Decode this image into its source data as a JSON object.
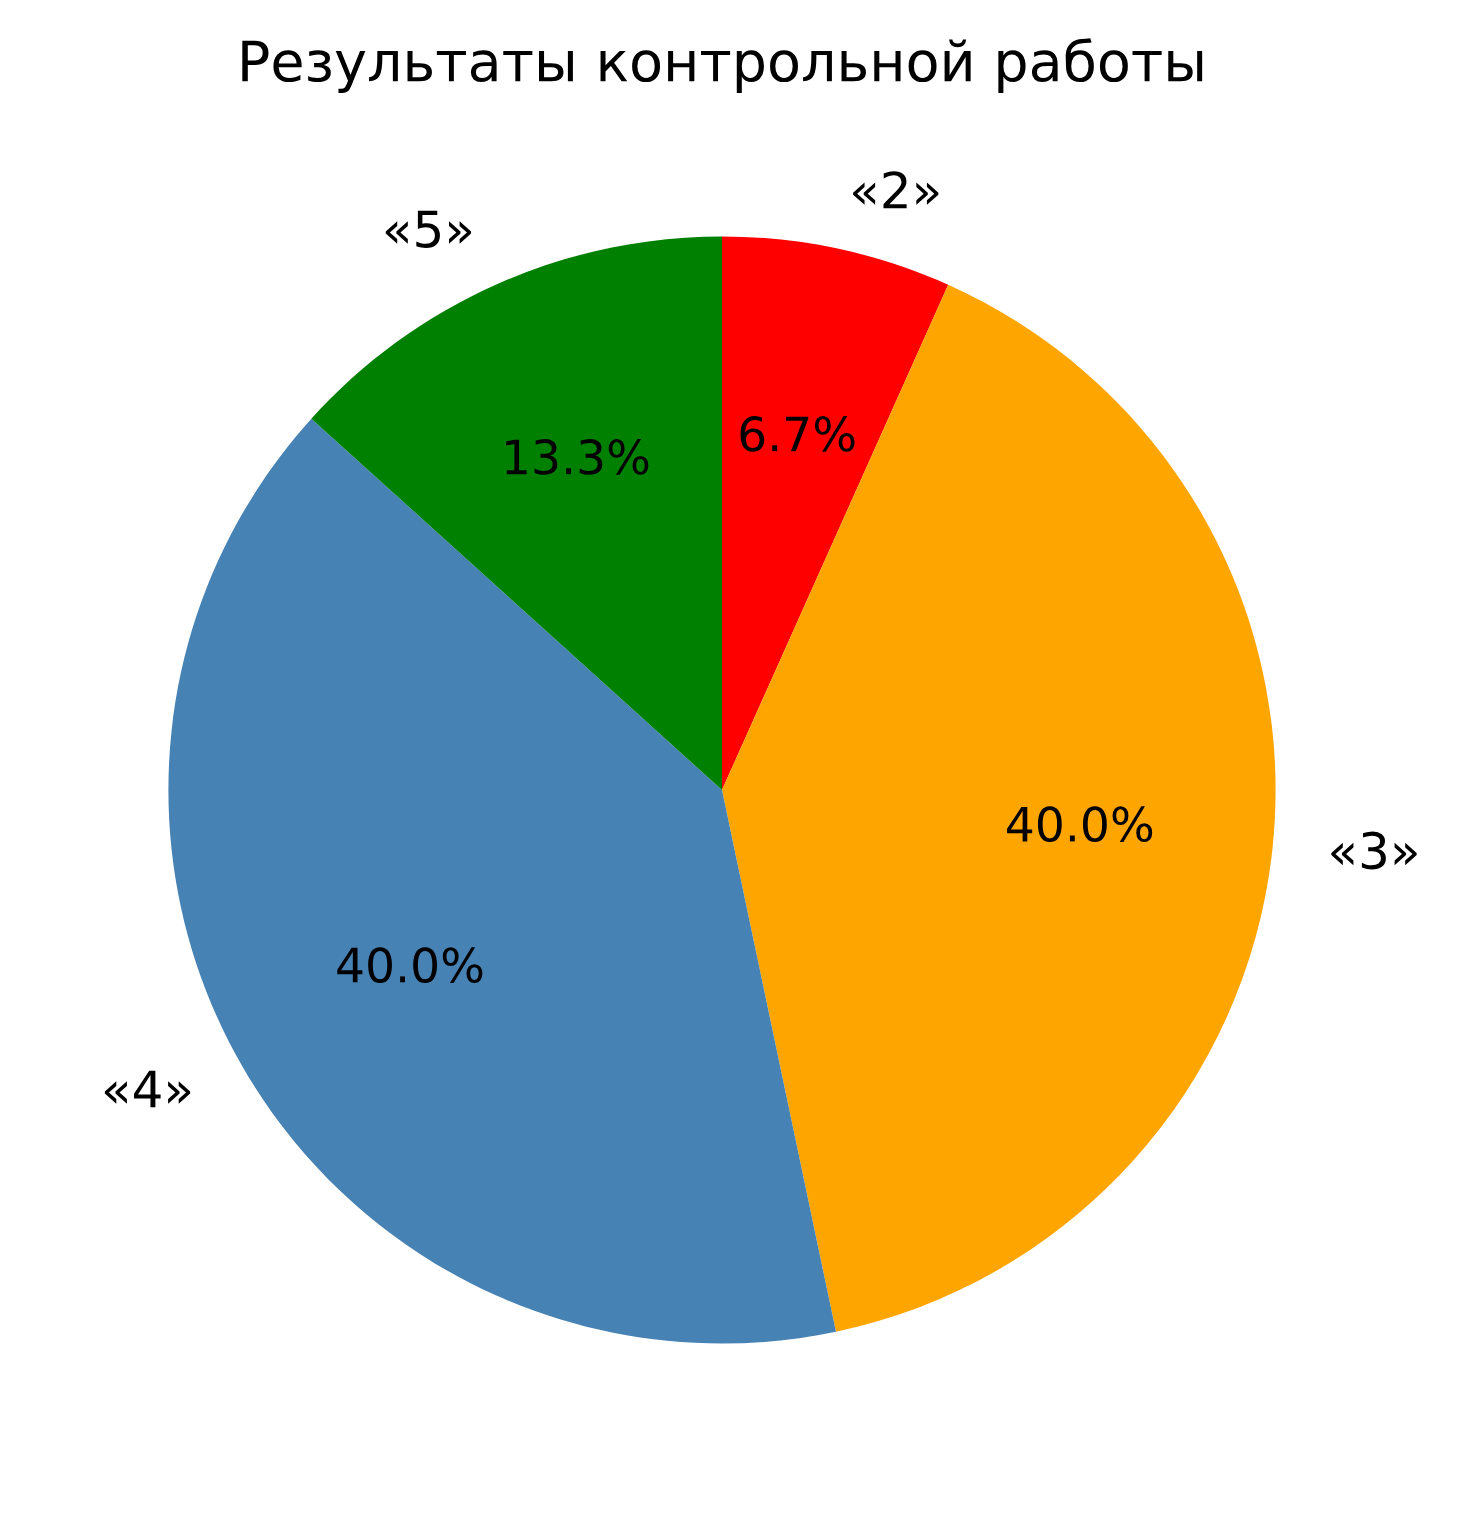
{
  "chart_data": {
    "type": "pie",
    "title": "Результаты контрольной работы",
    "categories": [
      "«2»",
      "«3»",
      "«4»",
      "«5»"
    ],
    "values": [
      6.7,
      40.0,
      40.0,
      13.3
    ],
    "colors": [
      "#ff0000",
      "#ffa500",
      "#4682b4",
      "#008000"
    ],
    "value_labels": [
      "6.7%",
      "40.0%",
      "40.0%",
      "13.3%"
    ]
  }
}
